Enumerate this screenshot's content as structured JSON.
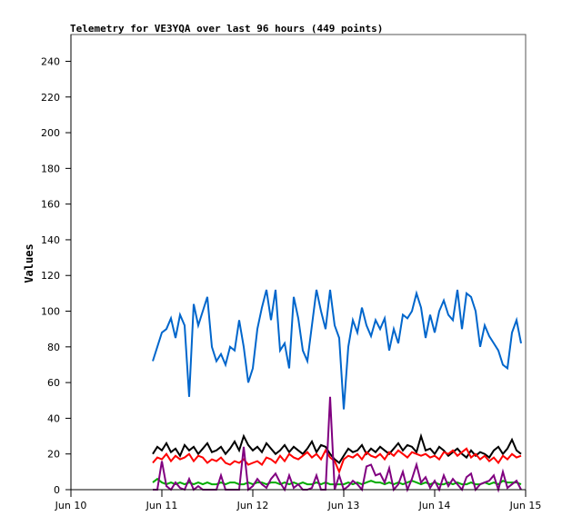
{
  "chart_data": {
    "type": "line",
    "title": "Telemetry for VE3YQA over last 96 hours (449 points)",
    "xlabel": "",
    "ylabel": "Values",
    "xlim": [
      "Jun 10 00:00",
      "Jun 15 00:00"
    ],
    "ylim": [
      0,
      255
    ],
    "grid": false,
    "legend": "none",
    "x_ticks": [
      "Jun 10",
      "Jun 11",
      "Jun 12",
      "Jun 13",
      "Jun 14",
      "Jun 15"
    ],
    "y_ticks": [
      "0",
      "20",
      "40",
      "60",
      "80",
      "100",
      "120",
      "140",
      "160",
      "180",
      "200",
      "220",
      "240"
    ],
    "x": [
      "Jun 10 21:36",
      "Jun 10 22:48",
      "Jun 11 00:00",
      "Jun 11 01:12",
      "Jun 11 02:24",
      "Jun 11 03:36",
      "Jun 11 04:48",
      "Jun 11 06:00",
      "Jun 11 07:12",
      "Jun 11 08:24",
      "Jun 11 09:36",
      "Jun 11 10:48",
      "Jun 11 12:00",
      "Jun 11 13:12",
      "Jun 11 14:24",
      "Jun 11 15:36",
      "Jun 11 16:48",
      "Jun 11 18:00",
      "Jun 11 19:12",
      "Jun 11 20:24",
      "Jun 11 21:36",
      "Jun 11 22:48",
      "Jun 12 00:00",
      "Jun 12 01:12",
      "Jun 12 02:24",
      "Jun 12 03:36",
      "Jun 12 04:48",
      "Jun 12 06:00",
      "Jun 12 07:12",
      "Jun 12 08:24",
      "Jun 12 09:36",
      "Jun 12 10:48",
      "Jun 12 12:00",
      "Jun 12 13:12",
      "Jun 12 14:24",
      "Jun 12 15:36",
      "Jun 12 16:48",
      "Jun 12 18:00",
      "Jun 12 19:12",
      "Jun 12 20:24",
      "Jun 12 21:36",
      "Jun 12 22:48",
      "Jun 13 00:00",
      "Jun 13 01:12",
      "Jun 13 02:24",
      "Jun 13 03:36",
      "Jun 13 04:48",
      "Jun 13 06:00",
      "Jun 13 07:12",
      "Jun 13 08:24",
      "Jun 13 09:36",
      "Jun 13 10:48",
      "Jun 13 12:00",
      "Jun 13 13:12",
      "Jun 13 14:24",
      "Jun 13 15:36",
      "Jun 13 16:48",
      "Jun 13 18:00",
      "Jun 13 19:12",
      "Jun 13 20:24",
      "Jun 13 21:36",
      "Jun 13 22:48",
      "Jun 14 00:00",
      "Jun 14 01:12",
      "Jun 14 02:24",
      "Jun 14 03:36",
      "Jun 14 04:48",
      "Jun 14 06:00",
      "Jun 14 07:12",
      "Jun 14 08:24",
      "Jun 14 09:36",
      "Jun 14 10:48",
      "Jun 14 12:00",
      "Jun 14 13:12",
      "Jun 14 14:24",
      "Jun 14 15:36",
      "Jun 14 16:48",
      "Jun 14 18:00",
      "Jun 14 19:12",
      "Jun 14 20:24",
      "Jun 14 21:36",
      "Jun 14 22:48"
    ],
    "series": [
      {
        "color": "#0066cc",
        "values": [
          72,
          80,
          88,
          90,
          96,
          85,
          98,
          92,
          52,
          104,
          92,
          100,
          108,
          80,
          72,
          76,
          70,
          80,
          78,
          95,
          80,
          60,
          68,
          90,
          102,
          112,
          95,
          112,
          78,
          82,
          68,
          108,
          96,
          78,
          72,
          92,
          112,
          100,
          90,
          112,
          92,
          85,
          45,
          80,
          95,
          88,
          102,
          92,
          86,
          95,
          90,
          96,
          78,
          90,
          82,
          98,
          96,
          100,
          110,
          102,
          85,
          98,
          88,
          100,
          106,
          98,
          95,
          112,
          90,
          110,
          108,
          100,
          80,
          92,
          86,
          82,
          78,
          70,
          68,
          88,
          95,
          82
        ]
      },
      {
        "color": "#000000",
        "values": [
          20,
          24,
          22,
          26,
          21,
          23,
          19,
          25,
          22,
          24,
          20,
          23,
          26,
          21,
          22,
          24,
          20,
          23,
          27,
          22,
          30,
          25,
          22,
          24,
          21,
          26,
          23,
          20,
          22,
          25,
          21,
          24,
          22,
          20,
          23,
          27,
          21,
          25,
          24,
          20,
          17,
          15,
          19,
          23,
          21,
          22,
          25,
          20,
          23,
          21,
          24,
          22,
          20,
          23,
          26,
          22,
          25,
          24,
          21,
          30,
          22,
          23,
          20,
          24,
          22,
          19,
          21,
          23,
          20,
          18,
          22,
          19,
          21,
          20,
          18,
          22,
          24,
          20,
          23,
          28,
          22,
          20
        ]
      },
      {
        "color": "#ff0000",
        "values": [
          15,
          18,
          17,
          20,
          16,
          19,
          17,
          18,
          20,
          16,
          19,
          18,
          15,
          17,
          16,
          18,
          15,
          14,
          16,
          15,
          17,
          14,
          15,
          16,
          14,
          18,
          17,
          15,
          19,
          16,
          20,
          18,
          17,
          19,
          21,
          18,
          20,
          17,
          22,
          18,
          16,
          10,
          17,
          19,
          18,
          20,
          17,
          21,
          19,
          18,
          20,
          17,
          21,
          19,
          22,
          20,
          18,
          21,
          20,
          19,
          20,
          18,
          19,
          17,
          21,
          20,
          22,
          19,
          21,
          23,
          18,
          20,
          17,
          19,
          16,
          18,
          15,
          19,
          17,
          20,
          18,
          19
        ]
      },
      {
        "color": "#00aa00",
        "values": [
          4,
          6,
          4,
          3,
          4,
          3,
          4,
          3,
          4,
          3,
          4,
          3,
          4,
          3,
          3,
          4,
          3,
          4,
          4,
          3,
          3,
          4,
          3,
          4,
          4,
          3,
          4,
          4,
          3,
          4,
          3,
          4,
          3,
          4,
          3,
          3,
          4,
          3,
          4,
          3,
          3,
          3,
          3,
          4,
          3,
          4,
          3,
          4,
          5,
          4,
          4,
          3,
          4,
          3,
          4,
          3,
          4,
          5,
          4,
          3,
          4,
          3,
          4,
          3,
          3,
          4,
          3,
          4,
          3,
          3,
          4,
          3,
          3,
          4,
          3,
          4,
          3,
          5,
          4,
          4,
          4,
          3
        ]
      },
      {
        "color": "#800080",
        "values": [
          0,
          0,
          16,
          2,
          0,
          4,
          1,
          0,
          6,
          0,
          2,
          0,
          0,
          0,
          0,
          8,
          0,
          0,
          0,
          0,
          24,
          0,
          2,
          6,
          3,
          1,
          6,
          9,
          4,
          0,
          8,
          1,
          3,
          0,
          0,
          1,
          8,
          0,
          0,
          52,
          0,
          8,
          0,
          2,
          5,
          3,
          0,
          13,
          14,
          8,
          9,
          4,
          12,
          0,
          3,
          10,
          0,
          6,
          14,
          4,
          7,
          1,
          5,
          0,
          8,
          2,
          6,
          3,
          0,
          7,
          9,
          0,
          3,
          4,
          5,
          8,
          0,
          10,
          1,
          3,
          5,
          0
        ]
      }
    ]
  }
}
